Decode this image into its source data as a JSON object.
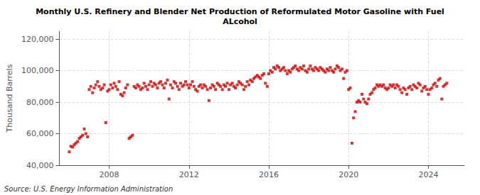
{
  "chart_data": {
    "type": "scatter",
    "title": "Monthly U.S. Refinery and Blender Net Production of Reformulated Motor Gasoline with Fuel\nALcohol",
    "ylabel": "Thousand Barrels",
    "annotations": [
      "Source: U.S. Energy Information Administration"
    ],
    "color": "#cc0000",
    "marker": "square",
    "grid": true,
    "xlim": [
      2005.5,
      2025.8
    ],
    "xticks": [
      2008,
      2012,
      2016,
      2020,
      2024
    ],
    "ylim": [
      40000,
      125000
    ],
    "yticks": [
      {
        "value": 40000,
        "label": "40,000"
      },
      {
        "value": 60000,
        "label": "60,000"
      },
      {
        "value": 80000,
        "label": "80,000"
      },
      {
        "value": 100000,
        "label": "100,000"
      },
      {
        "value": 120000,
        "label": "120,000"
      }
    ],
    "x": [
      2006.0,
      2006.08,
      2006.17,
      2006.25,
      2006.33,
      2006.42,
      2006.5,
      2006.58,
      2006.67,
      2006.75,
      2006.83,
      2006.92,
      2007.0,
      2007.08,
      2007.17,
      2007.25,
      2007.33,
      2007.42,
      2007.5,
      2007.58,
      2007.67,
      2007.75,
      2007.83,
      2007.92,
      2008.0,
      2008.08,
      2008.17,
      2008.25,
      2008.33,
      2008.42,
      2008.5,
      2008.58,
      2008.67,
      2008.75,
      2008.83,
      2008.92,
      2009.0,
      2009.08,
      2009.17,
      2009.25,
      2009.33,
      2009.42,
      2009.5,
      2009.58,
      2009.67,
      2009.75,
      2009.83,
      2009.92,
      2010.0,
      2010.08,
      2010.17,
      2010.25,
      2010.33,
      2010.42,
      2010.5,
      2010.58,
      2010.67,
      2010.75,
      2010.83,
      2010.92,
      2011.0,
      2011.08,
      2011.17,
      2011.25,
      2011.33,
      2011.42,
      2011.5,
      2011.58,
      2011.67,
      2011.75,
      2011.83,
      2011.92,
      2012.0,
      2012.08,
      2012.17,
      2012.25,
      2012.33,
      2012.42,
      2012.5,
      2012.58,
      2012.67,
      2012.75,
      2012.83,
      2012.92,
      2013.0,
      2013.08,
      2013.17,
      2013.25,
      2013.33,
      2013.42,
      2013.5,
      2013.58,
      2013.67,
      2013.75,
      2013.83,
      2013.92,
      2014.0,
      2014.08,
      2014.17,
      2014.25,
      2014.33,
      2014.42,
      2014.5,
      2014.58,
      2014.67,
      2014.75,
      2014.83,
      2014.92,
      2015.0,
      2015.08,
      2015.17,
      2015.25,
      2015.33,
      2015.42,
      2015.5,
      2015.58,
      2015.67,
      2015.75,
      2015.83,
      2015.92,
      2016.0,
      2016.08,
      2016.17,
      2016.25,
      2016.33,
      2016.42,
      2016.5,
      2016.58,
      2016.67,
      2016.75,
      2016.83,
      2016.92,
      2017.0,
      2017.08,
      2017.17,
      2017.25,
      2017.33,
      2017.42,
      2017.5,
      2017.58,
      2017.67,
      2017.75,
      2017.83,
      2017.92,
      2018.0,
      2018.08,
      2018.17,
      2018.25,
      2018.33,
      2018.42,
      2018.5,
      2018.58,
      2018.67,
      2018.75,
      2018.83,
      2018.92,
      2019.0,
      2019.08,
      2019.17,
      2019.25,
      2019.33,
      2019.42,
      2019.5,
      2019.58,
      2019.67,
      2019.75,
      2019.83,
      2019.92,
      2020.0,
      2020.08,
      2020.17,
      2020.25,
      2020.33,
      2020.42,
      2020.5,
      2020.58,
      2020.67,
      2020.75,
      2020.83,
      2020.92,
      2021.0,
      2021.08,
      2021.17,
      2021.25,
      2021.33,
      2021.42,
      2021.5,
      2021.58,
      2021.67,
      2021.75,
      2021.83,
      2021.92,
      2022.0,
      2022.08,
      2022.17,
      2022.25,
      2022.33,
      2022.42,
      2022.5,
      2022.58,
      2022.67,
      2022.75,
      2022.83,
      2022.92,
      2023.0,
      2023.08,
      2023.17,
      2023.25,
      2023.33,
      2023.42,
      2023.5,
      2023.58,
      2023.67,
      2023.75,
      2023.83,
      2023.92,
      2024.0,
      2024.08,
      2024.17,
      2024.25,
      2024.33,
      2024.42,
      2024.5,
      2024.58,
      2024.67,
      2024.75,
      2024.83,
      2024.92
    ],
    "values": [
      48500,
      52000,
      51500,
      53000,
      54000,
      55000,
      57000,
      58000,
      59000,
      63000,
      60000,
      58000,
      88000,
      90000,
      86000,
      89000,
      91000,
      93000,
      90000,
      88000,
      89000,
      91000,
      67000,
      87000,
      88000,
      91000,
      89000,
      92000,
      90000,
      88000,
      93000,
      85000,
      84000,
      86000,
      89000,
      91000,
      57000,
      58000,
      59000,
      90000,
      89000,
      91000,
      90000,
      88000,
      89000,
      92000,
      90000,
      88000,
      91000,
      93000,
      90000,
      92000,
      91000,
      89000,
      92000,
      93000,
      91000,
      89000,
      92000,
      94000,
      82000,
      91000,
      89000,
      93000,
      92000,
      90000,
      88000,
      92000,
      90000,
      91000,
      93000,
      91000,
      89000,
      91000,
      93000,
      90000,
      88000,
      87000,
      90000,
      91000,
      89000,
      91000,
      90000,
      88000,
      81000,
      89000,
      91000,
      90000,
      88000,
      92000,
      91000,
      90000,
      88000,
      91000,
      90000,
      92000,
      88000,
      91000,
      92000,
      90000,
      89000,
      91000,
      93000,
      92000,
      91000,
      88000,
      90000,
      93000,
      91000,
      94000,
      93000,
      95000,
      96000,
      97000,
      96000,
      95000,
      97000,
      98000,
      92000,
      90000,
      98000,
      100000,
      99000,
      102000,
      101000,
      103000,
      102000,
      100000,
      101000,
      102000,
      100000,
      98000,
      100000,
      99000,
      101000,
      102000,
      103000,
      101000,
      100000,
      102000,
      101000,
      103000,
      100000,
      99000,
      101000,
      103000,
      101000,
      100000,
      102000,
      101000,
      100000,
      102000,
      101000,
      100000,
      99000,
      101000,
      100000,
      102000,
      100000,
      99000,
      101000,
      103000,
      102000,
      100000,
      101000,
      95000,
      99000,
      100000,
      88000,
      89000,
      54000,
      70000,
      74000,
      80000,
      81000,
      80000,
      85000,
      82000,
      80000,
      79000,
      82000,
      85000,
      86000,
      88000,
      89000,
      91000,
      90000,
      91000,
      90000,
      91000,
      89000,
      88000,
      89000,
      91000,
      90000,
      91000,
      89000,
      91000,
      90000,
      88000,
      86000,
      89000,
      88000,
      85000,
      89000,
      90000,
      88000,
      91000,
      90000,
      89000,
      92000,
      91000,
      87000,
      89000,
      90000,
      88000,
      85000,
      88000,
      89000,
      91000,
      92000,
      90000,
      94000,
      95000,
      82000,
      90000,
      91000,
      92000
    ]
  }
}
